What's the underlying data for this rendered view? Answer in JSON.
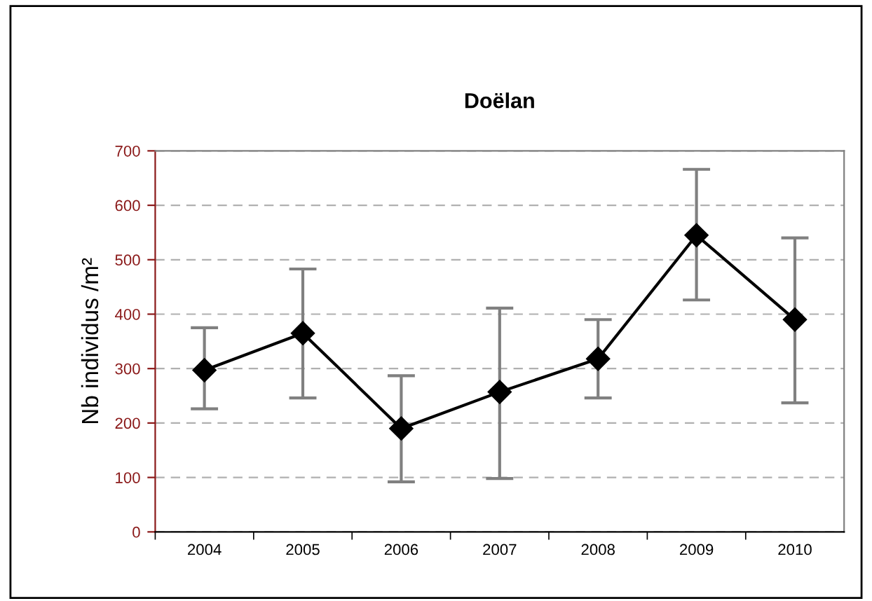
{
  "chart_data": {
    "type": "line",
    "title": "Doëlan",
    "ylabel": "Nb individus /m²",
    "categories": [
      "2004",
      "2005",
      "2006",
      "2007",
      "2008",
      "2009",
      "2010"
    ],
    "series": [
      {
        "color": "#000000",
        "values": [
          297,
          365,
          190,
          257,
          318,
          545,
          390
        ],
        "errors": [
          [
            226,
            375
          ],
          [
            246,
            483
          ],
          [
            92,
            287
          ],
          [
            98,
            411
          ],
          [
            246,
            390
          ],
          [
            426,
            666
          ],
          [
            237,
            540
          ]
        ]
      }
    ],
    "ylim": [
      0,
      700
    ],
    "yticks": [
      0,
      100,
      200,
      300,
      400,
      500,
      600,
      700
    ],
    "grid": "y",
    "marker": "diamond",
    "line_style": "solid"
  }
}
